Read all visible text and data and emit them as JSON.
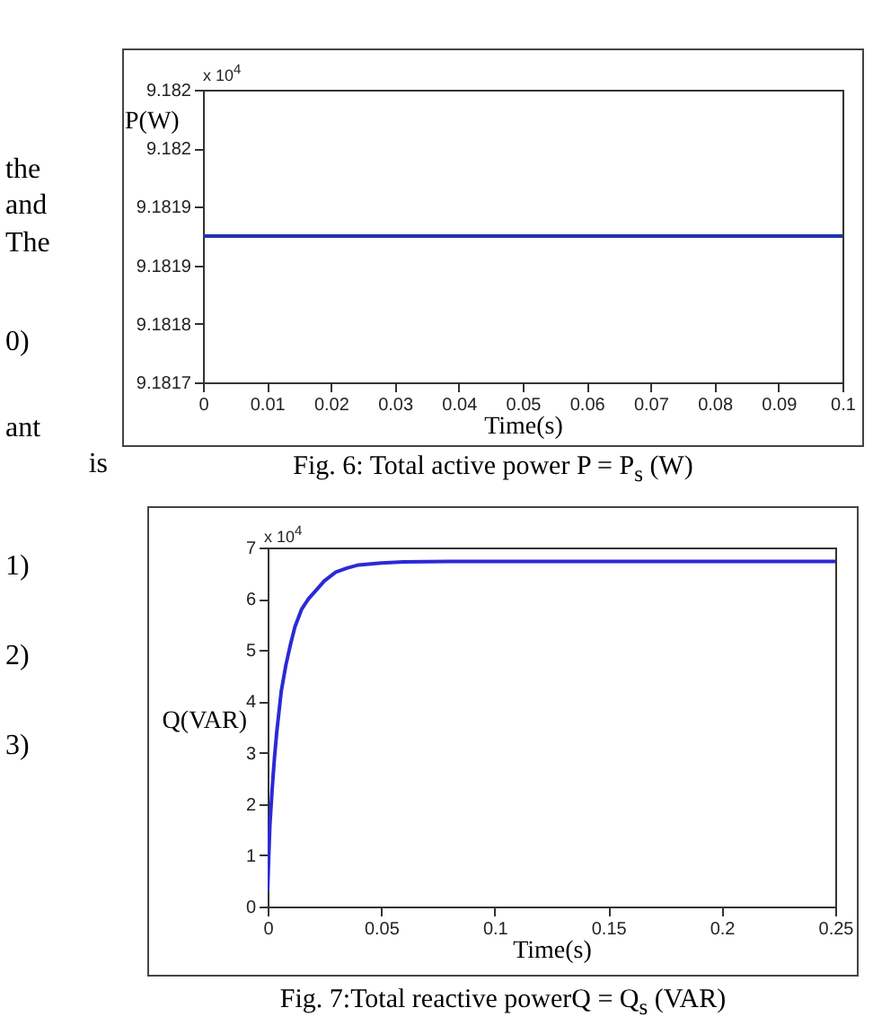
{
  "chart_data": [
    {
      "type": "line",
      "title": "Fig. 6: Total active power P = P$_{s}$ (W)",
      "xlabel": "Time(s)",
      "ylabel": "P(W)",
      "series": [
        {
          "color": "#2433a8",
          "x": [
            0,
            0.1
          ],
          "values": [
            9.1819,
            9.1819
          ]
        }
      ],
      "xlim": [
        0,
        0.1
      ],
      "xticks": [
        0,
        0.01,
        0.02,
        0.03,
        0.04,
        0.05,
        0.06,
        0.07,
        0.08,
        0.09,
        0.1
      ],
      "ylim": [
        9.1817,
        9.1821
      ],
      "yticks": [
        {
          "value": 9.1817,
          "label": "9.1817"
        },
        {
          "value": 9.18178,
          "label": "9.1818"
        },
        {
          "value": 9.18186,
          "label": "9.1819"
        },
        {
          "value": 9.18194,
          "label": "9.1819"
        },
        {
          "value": 9.18202,
          "label": "9.182"
        },
        {
          "value": 9.1821,
          "label": "9.182"
        }
      ],
      "annotations": [
        "x 10$^{4}$"
      ]
    },
    {
      "type": "line",
      "title": "Fig. 7:Total reactive powerQ = Q$_{s}$ (VAR)",
      "xlabel": "Time(s)",
      "ylabel": "Q(VAR)",
      "series": [
        {
          "color": "#2a2ad6",
          "x": [
            0,
            0.0005,
            0.001,
            0.002,
            0.003,
            0.004,
            0.005,
            0.006,
            0.008,
            0.01,
            0.012,
            0.015,
            0.018,
            0.021,
            0.025,
            0.03,
            0.035,
            0.04,
            0.05,
            0.06,
            0.08,
            0.1,
            0.15,
            0.2,
            0.25
          ],
          "values": [
            0.3,
            1.0,
            1.6,
            2.3,
            2.9,
            3.4,
            3.8,
            4.2,
            4.7,
            5.1,
            5.45,
            5.8,
            6.0,
            6.15,
            6.35,
            6.52,
            6.6,
            6.66,
            6.7,
            6.72,
            6.73,
            6.73,
            6.73,
            6.73,
            6.73
          ]
        }
      ],
      "xlim": [
        0,
        0.25
      ],
      "xticks": [
        0,
        0.05,
        0.1,
        0.15,
        0.2,
        0.25
      ],
      "ylim": [
        0,
        7
      ],
      "yticks": [
        0,
        1,
        2,
        3,
        4,
        5,
        6,
        7
      ],
      "annotations": [
        "x 10$^{4}$"
      ]
    },
    {
      "type": "other",
      "annotations": [
        "the",
        "and",
        "The",
        "0)",
        "ant",
        "is",
        "1)",
        "2)",
        "3)"
      ]
    }
  ]
}
